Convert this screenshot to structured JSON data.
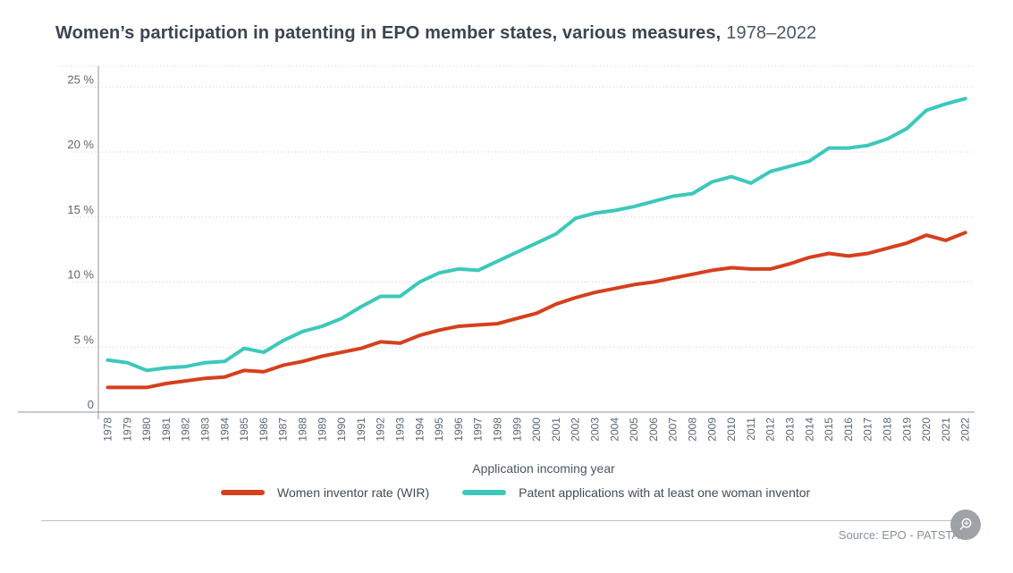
{
  "title": {
    "main": "Women’s participation in patenting in EPO member states, various measures,",
    "range": "1978–2022"
  },
  "x_axis": {
    "title": "Application incoming year"
  },
  "y_axis": {
    "ticks": [
      {
        "value": 0,
        "label": "0"
      },
      {
        "value": 5,
        "label": "5 %"
      },
      {
        "value": 10,
        "label": "10 %"
      },
      {
        "value": 15,
        "label": "15 %"
      },
      {
        "value": 20,
        "label": "20 %"
      },
      {
        "value": 25,
        "label": "25 %"
      }
    ]
  },
  "legend": {
    "items": [
      {
        "label": "Women inventor rate (WIR)",
        "color": "#d5401d"
      },
      {
        "label": "Patent applications with at least one woman inventor",
        "color": "#3cc8ba"
      }
    ]
  },
  "source": "Source: EPO - PATSTAT",
  "icons": {
    "zoom_button": "magnifier-plus-icon"
  },
  "colors": {
    "title": "#3c4551",
    "axis_line": "#8f969e",
    "grid_dots": "#c8ccd1",
    "tick_labels": "#5c6572",
    "wir_red": "#d5401d",
    "woman_teal": "#3cc8ba",
    "source_text": "#8b929a"
  },
  "chart_data": {
    "type": "line",
    "title": "Women’s participation in patenting in EPO member states, various measures, 1978–2022",
    "xlabel": "Application incoming year",
    "ylabel": "",
    "ylim": [
      0,
      27
    ],
    "grid": "dotted-horizontal",
    "legend_position": "bottom",
    "x": [
      1978,
      1979,
      1980,
      1981,
      1982,
      1983,
      1984,
      1985,
      1986,
      1987,
      1988,
      1989,
      1990,
      1991,
      1992,
      1993,
      1994,
      1995,
      1996,
      1997,
      1998,
      1999,
      2000,
      2001,
      2002,
      2003,
      2004,
      2005,
      2006,
      2007,
      2008,
      2009,
      2010,
      2011,
      2012,
      2013,
      2014,
      2015,
      2016,
      2017,
      2018,
      2019,
      2020,
      2021,
      2022
    ],
    "series": [
      {
        "name": "Women inventor rate (WIR)",
        "color": "#d5401d",
        "values": [
          1.9,
          1.9,
          1.9,
          2.2,
          2.4,
          2.6,
          2.7,
          3.2,
          3.1,
          3.6,
          3.9,
          4.3,
          4.6,
          4.9,
          5.4,
          5.3,
          5.9,
          6.3,
          6.6,
          6.7,
          6.8,
          7.2,
          7.6,
          8.3,
          8.8,
          9.2,
          9.5,
          9.8,
          10.0,
          10.3,
          10.6,
          10.9,
          11.1,
          11.0,
          11.0,
          11.4,
          11.9,
          12.2,
          12.0,
          12.2,
          12.6,
          13.0,
          13.6,
          13.2,
          13.8
        ]
      },
      {
        "name": "Patent applications with at least one woman inventor",
        "color": "#3cc8ba",
        "values": [
          4.0,
          3.8,
          3.2,
          3.4,
          3.5,
          3.8,
          3.9,
          4.9,
          4.6,
          5.5,
          6.2,
          6.6,
          7.2,
          8.1,
          8.9,
          8.9,
          10.0,
          10.7,
          11.0,
          10.9,
          11.6,
          12.3,
          13.0,
          13.7,
          14.9,
          15.3,
          15.5,
          15.8,
          16.2,
          16.6,
          16.8,
          17.7,
          18.1,
          17.6,
          18.5,
          18.9,
          19.3,
          20.3,
          20.3,
          20.5,
          21.0,
          21.8,
          23.2,
          23.7,
          24.1
        ]
      }
    ]
  }
}
